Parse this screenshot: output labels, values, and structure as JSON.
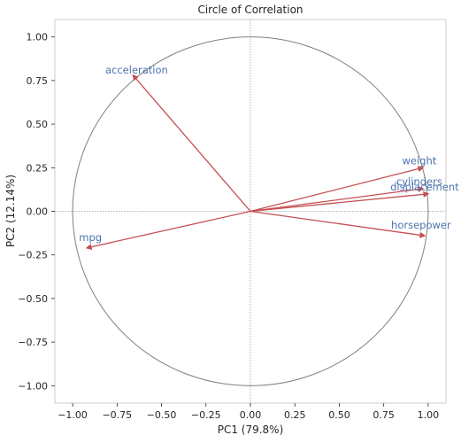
{
  "chart_data": {
    "type": "scatter",
    "title": "Circle of Correlation",
    "xlabel": "PC1 (79.8%)",
    "ylabel": "PC2 (12.14%)",
    "xlim": [
      -1.1,
      1.1
    ],
    "ylim": [
      -1.1,
      1.1
    ],
    "xticks": [
      -1.0,
      -0.75,
      -0.5,
      -0.25,
      0.0,
      0.25,
      0.5,
      0.75,
      1.0
    ],
    "xtick_labels": [
      "−1.00",
      "−0.75",
      "−0.50",
      "−0.25",
      "0.00",
      "0.25",
      "0.50",
      "0.75",
      "1.00"
    ],
    "yticks": [
      1.0,
      0.75,
      0.5,
      0.25,
      0.0,
      -0.25,
      -0.5,
      -0.75,
      -1.0
    ],
    "ytick_labels": [
      "1.00",
      "0.75",
      "0.50",
      "0.25",
      "0.00",
      "−0.25",
      "−0.50",
      "−0.75",
      "−1.00"
    ],
    "grid": false,
    "unit_circle": true,
    "reference_lines": {
      "x": 0,
      "y": 0
    },
    "colors": {
      "arrow": "#c44e52",
      "label": "#4c72b0",
      "circle": "#7f7f7f",
      "reference": "#a0a0a0",
      "frame": "#cccccc",
      "text": "#262626"
    },
    "vectors": [
      {
        "name": "acceleration",
        "x": -0.66,
        "y": 0.78,
        "label_x": -0.64,
        "label_y": 0.79
      },
      {
        "name": "weight",
        "x": 0.97,
        "y": 0.25,
        "label_x": 0.95,
        "label_y": 0.27
      },
      {
        "name": "cylinders",
        "x": 0.97,
        "y": 0.13,
        "label_x": 0.95,
        "label_y": 0.15
      },
      {
        "name": "displacement",
        "x": 1.0,
        "y": 0.1,
        "label_x": 0.98,
        "label_y": 0.12
      },
      {
        "name": "horsepower",
        "x": 0.98,
        "y": -0.14,
        "label_x": 0.96,
        "label_y": -0.1
      },
      {
        "name": "mpg",
        "x": -0.92,
        "y": -0.21,
        "label_x": -0.9,
        "label_y": -0.17
      }
    ]
  }
}
